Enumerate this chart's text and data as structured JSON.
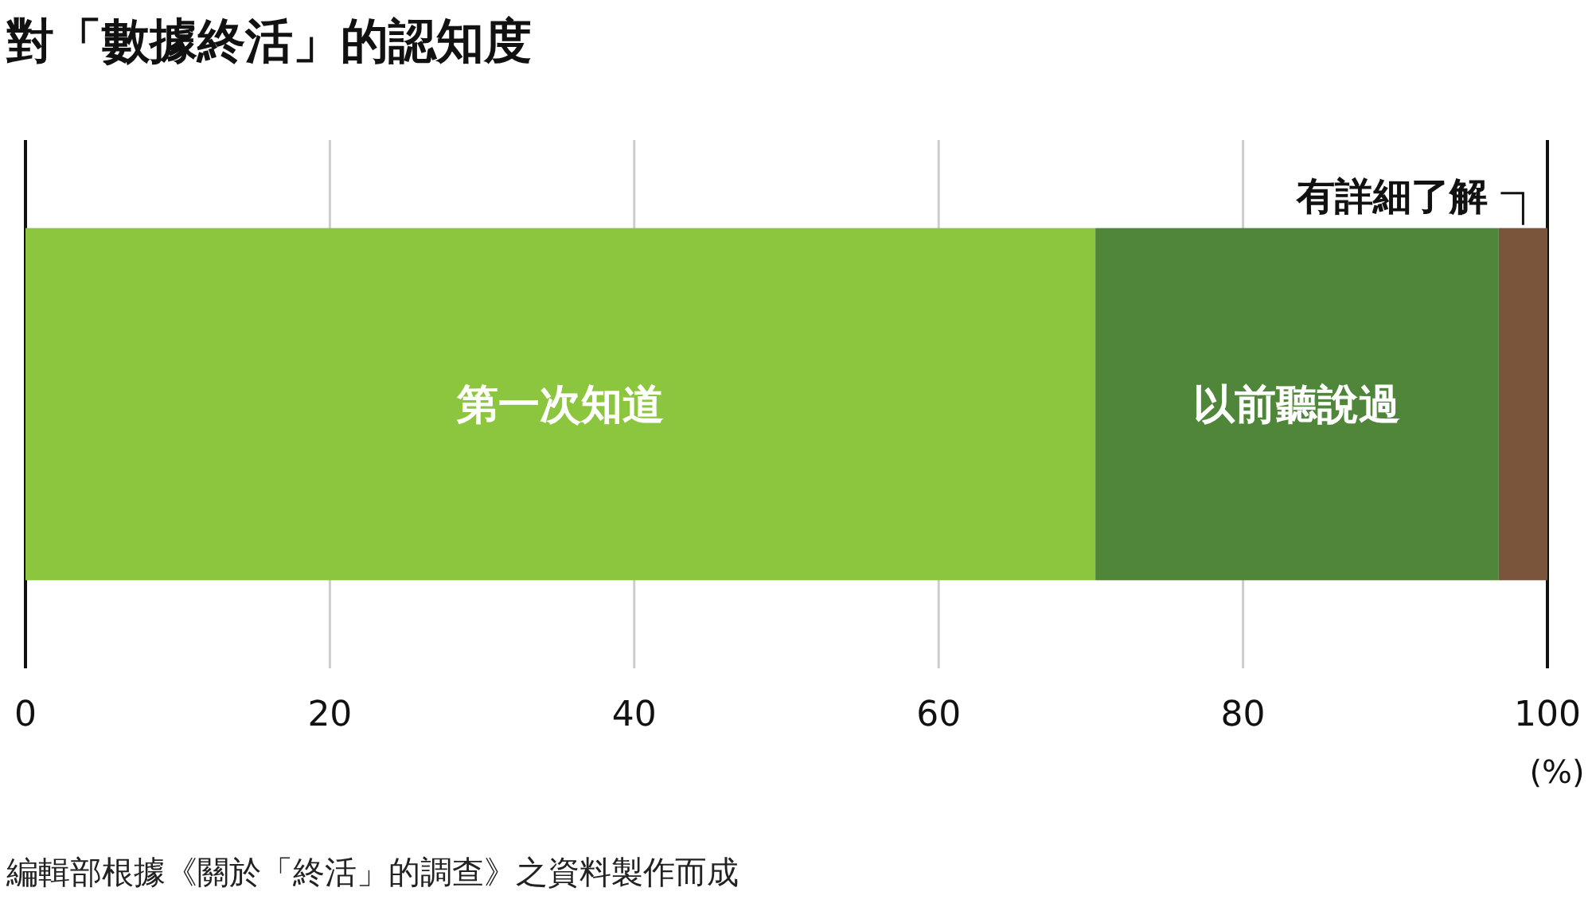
{
  "chart_data": {
    "type": "bar",
    "orientation": "horizontal",
    "stacked": true,
    "title": "對「數據終活」的認知度",
    "xlabel": "(%)",
    "categories": [
      null
    ],
    "series": [
      {
        "name": "第一次知道",
        "color": "#8cc63f",
        "values": [
          70.3
        ]
      },
      {
        "name": "以前聽說過",
        "color": "#4f8639",
        "values": [
          26.5
        ]
      },
      {
        "name": "有詳細了解",
        "color": "#7a553b",
        "values": [
          3.2
        ]
      }
    ],
    "xlim": [
      0,
      100
    ],
    "xticks": [
      0,
      20,
      40,
      60,
      80,
      100
    ],
    "grid": "x",
    "annotations": [
      "編輯部根據《關於「終活」的調查》之資料製作而成"
    ]
  }
}
